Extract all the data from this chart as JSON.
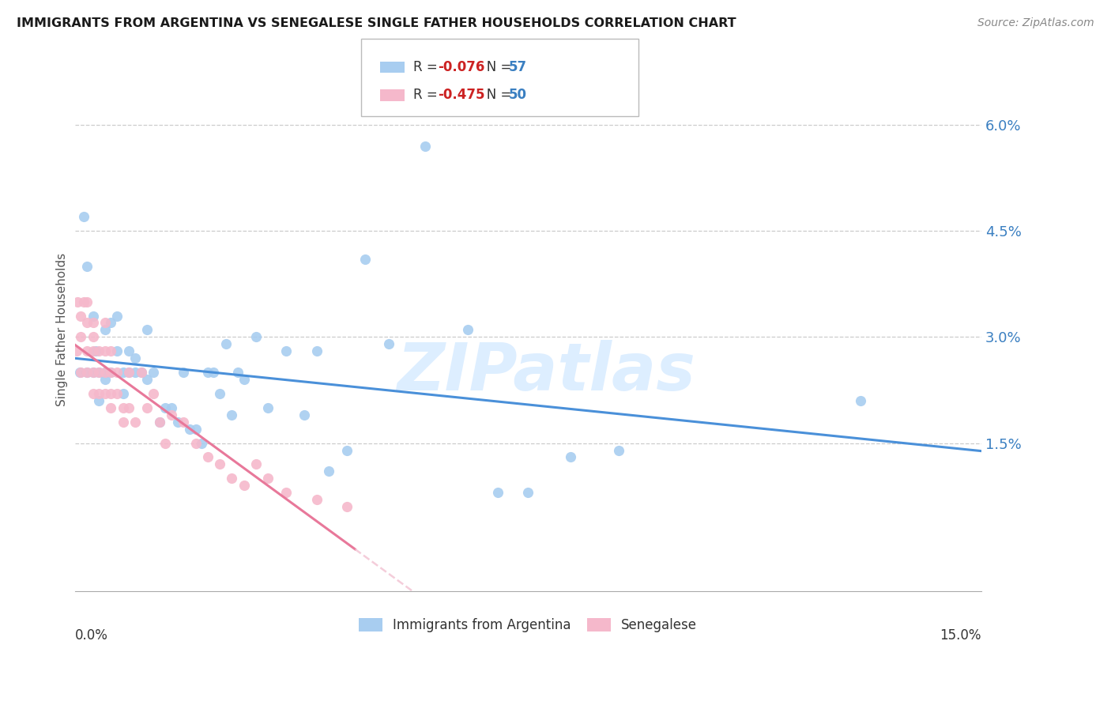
{
  "title": "IMMIGRANTS FROM ARGENTINA VS SENEGALESE SINGLE FATHER HOUSEHOLDS CORRELATION CHART",
  "source": "Source: ZipAtlas.com",
  "ylabel": "Single Father Households",
  "xmin": 0.0,
  "xmax": 0.15,
  "ymin": -0.006,
  "ymax": 0.068,
  "argentina_R": -0.076,
  "argentina_N": 57,
  "senegal_R": -0.475,
  "senegal_N": 50,
  "argentina_color": "#a8cdf0",
  "senegal_color": "#f5b8cb",
  "argentina_line_color": "#4a90d9",
  "senegal_line_color": "#e8789a",
  "senegal_line_dashed_color": "#f0b8cb",
  "watermark_color": "#ddeeff",
  "background_color": "#ffffff",
  "grid_color": "#cccccc",
  "ytick_vals": [
    0.015,
    0.03,
    0.045,
    0.06
  ],
  "ytick_labels": [
    "1.5%",
    "3.0%",
    "4.5%",
    "6.0%"
  ],
  "arg_x": [
    0.0008,
    0.0015,
    0.002,
    0.002,
    0.003,
    0.003,
    0.0035,
    0.004,
    0.004,
    0.005,
    0.005,
    0.005,
    0.006,
    0.006,
    0.007,
    0.007,
    0.008,
    0.008,
    0.009,
    0.009,
    0.01,
    0.01,
    0.011,
    0.012,
    0.012,
    0.013,
    0.014,
    0.015,
    0.016,
    0.017,
    0.018,
    0.019,
    0.02,
    0.021,
    0.022,
    0.023,
    0.024,
    0.025,
    0.026,
    0.027,
    0.028,
    0.03,
    0.032,
    0.035,
    0.038,
    0.04,
    0.042,
    0.045,
    0.048,
    0.052,
    0.058,
    0.065,
    0.07,
    0.075,
    0.082,
    0.09,
    0.13
  ],
  "arg_y": [
    0.025,
    0.047,
    0.04,
    0.025,
    0.025,
    0.033,
    0.028,
    0.025,
    0.021,
    0.025,
    0.031,
    0.024,
    0.025,
    0.032,
    0.033,
    0.028,
    0.025,
    0.022,
    0.025,
    0.028,
    0.027,
    0.025,
    0.025,
    0.031,
    0.024,
    0.025,
    0.018,
    0.02,
    0.02,
    0.018,
    0.025,
    0.017,
    0.017,
    0.015,
    0.025,
    0.025,
    0.022,
    0.029,
    0.019,
    0.025,
    0.024,
    0.03,
    0.02,
    0.028,
    0.019,
    0.028,
    0.011,
    0.014,
    0.041,
    0.029,
    0.057,
    0.031,
    0.008,
    0.008,
    0.013,
    0.014,
    0.021
  ],
  "sen_x": [
    0.0003,
    0.0005,
    0.001,
    0.001,
    0.001,
    0.0015,
    0.002,
    0.002,
    0.002,
    0.002,
    0.003,
    0.003,
    0.003,
    0.003,
    0.003,
    0.004,
    0.004,
    0.004,
    0.005,
    0.005,
    0.005,
    0.005,
    0.006,
    0.006,
    0.006,
    0.006,
    0.007,
    0.007,
    0.008,
    0.008,
    0.009,
    0.009,
    0.01,
    0.011,
    0.012,
    0.013,
    0.014,
    0.015,
    0.016,
    0.018,
    0.02,
    0.022,
    0.024,
    0.026,
    0.028,
    0.03,
    0.032,
    0.035,
    0.04,
    0.045
  ],
  "sen_y": [
    0.028,
    0.035,
    0.033,
    0.03,
    0.025,
    0.035,
    0.035,
    0.032,
    0.028,
    0.025,
    0.032,
    0.03,
    0.028,
    0.025,
    0.022,
    0.028,
    0.025,
    0.022,
    0.032,
    0.028,
    0.025,
    0.022,
    0.028,
    0.025,
    0.022,
    0.02,
    0.025,
    0.022,
    0.02,
    0.018,
    0.025,
    0.02,
    0.018,
    0.025,
    0.02,
    0.022,
    0.018,
    0.015,
    0.019,
    0.018,
    0.015,
    0.013,
    0.012,
    0.01,
    0.009,
    0.012,
    0.01,
    0.008,
    0.007,
    0.006
  ]
}
